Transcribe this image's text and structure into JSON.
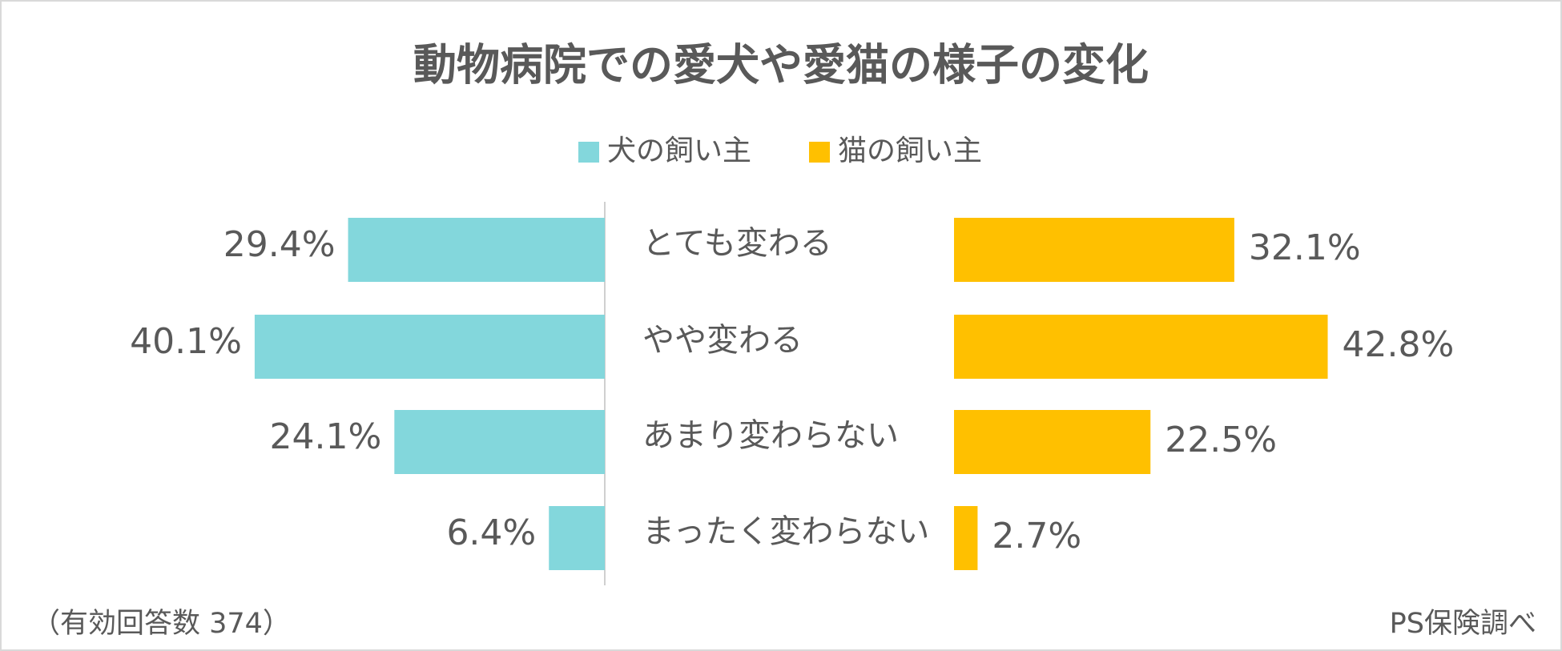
{
  "chart_data": {
    "type": "bar",
    "title": "動物病院での愛犬や愛猫の様子の変化",
    "categories": [
      "とても変わる",
      "やや変わる",
      "あまり変わらない",
      "まったく変わらない"
    ],
    "series": [
      {
        "name": "犬の飼い主",
        "color": "#83d7dc",
        "values": [
          29.4,
          40.1,
          24.1,
          6.4
        ],
        "value_labels": [
          "29.4%",
          "40.1%",
          "24.1%",
          "6.4%"
        ]
      },
      {
        "name": "猫の飼い主",
        "color": "#ffc000",
        "values": [
          32.1,
          42.8,
          22.5,
          2.7
        ],
        "value_labels": [
          "32.1%",
          "42.8%",
          "22.5%",
          "2.7%"
        ]
      }
    ],
    "note": "（有効回答数 374）",
    "source": "PS保険調べ"
  }
}
